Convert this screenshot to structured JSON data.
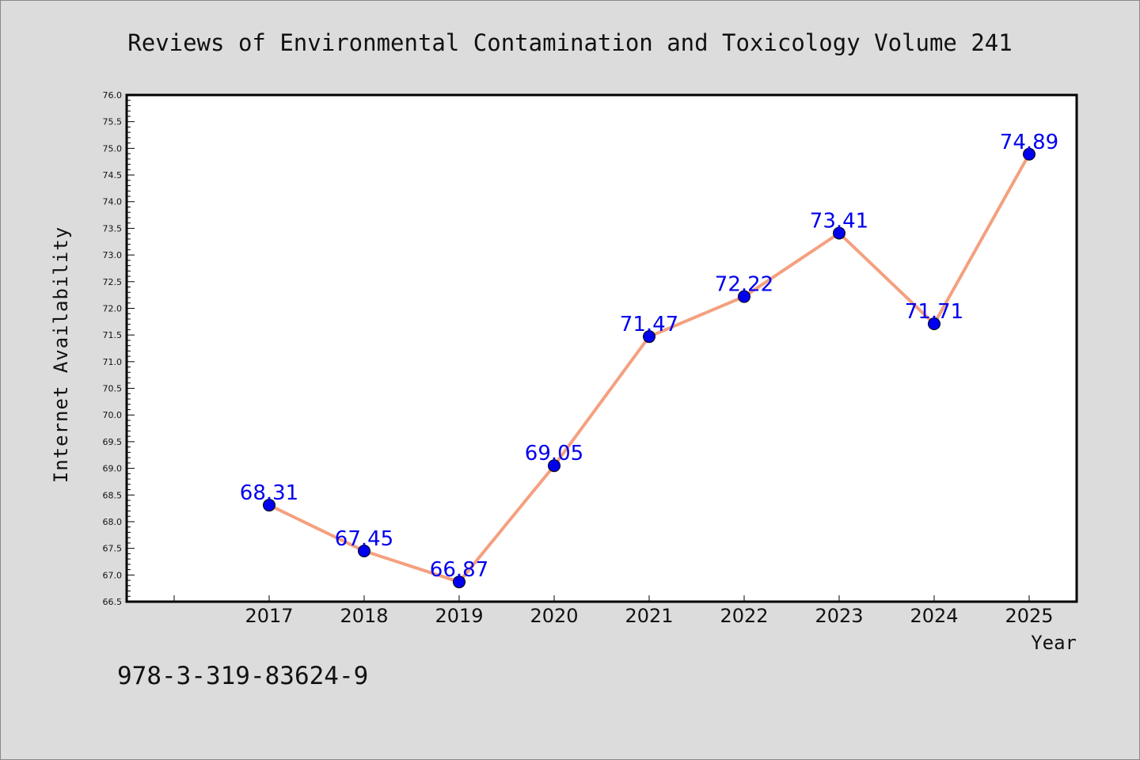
{
  "chart_data": {
    "type": "line",
    "title": "Reviews of Environmental Contamination and Toxicology Volume 241",
    "xlabel": "Year",
    "ylabel": "Internet Availability",
    "categories": [
      "2017",
      "2018",
      "2019",
      "2020",
      "2021",
      "2022",
      "2023",
      "2024",
      "2025"
    ],
    "values": [
      68.31,
      67.45,
      66.87,
      69.05,
      71.47,
      72.22,
      73.41,
      71.71,
      74.89
    ],
    "data_labels": [
      "68.31",
      "67.45",
      "66.87",
      "69.05",
      "71.47",
      "72.22",
      "73.41",
      "71.71",
      "74.89"
    ],
    "ylim": [
      66.5,
      76.0
    ],
    "yticks": [
      "66.5",
      "67.0",
      "67.5",
      "68.0",
      "68.5",
      "69.0",
      "69.5",
      "70.0",
      "70.5",
      "71.0",
      "71.5",
      "72.0",
      "72.5",
      "73.0",
      "73.5",
      "74.0",
      "74.5",
      "75.0",
      "75.5",
      "76.0"
    ],
    "grid": false,
    "line_color": "#f4a07f",
    "marker_color": "#0000ee",
    "label_color": "#0000ee",
    "plot_background": "#ffffff",
    "page_background": "#dcdcdc"
  },
  "footer": {
    "isbn": "978-3-319-83624-9"
  }
}
